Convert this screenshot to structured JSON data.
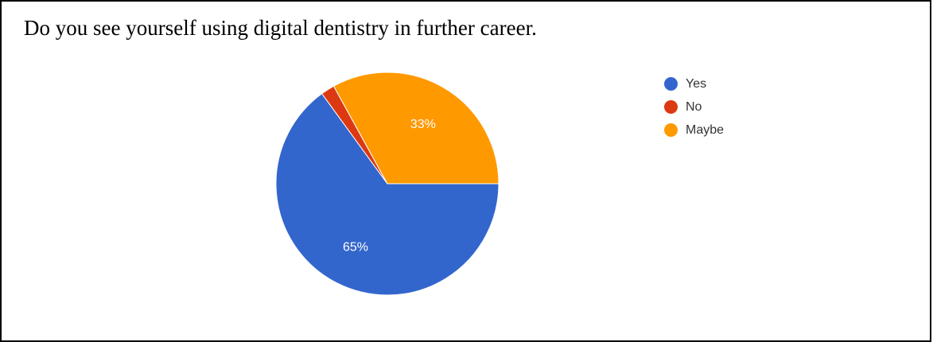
{
  "question": "Do you see yourself using digital dentistry in further career.",
  "chart_data": {
    "type": "pie",
    "title": "",
    "categories": [
      "Yes",
      "No",
      "Maybe"
    ],
    "values": [
      65,
      2,
      33
    ],
    "labels": [
      "65%",
      "",
      "33%"
    ],
    "colors": [
      "#3366CC",
      "#DC3912",
      "#FF9900"
    ],
    "legend_position": "right",
    "start_angle_deg": 90,
    "direction": "counterclockwise"
  }
}
